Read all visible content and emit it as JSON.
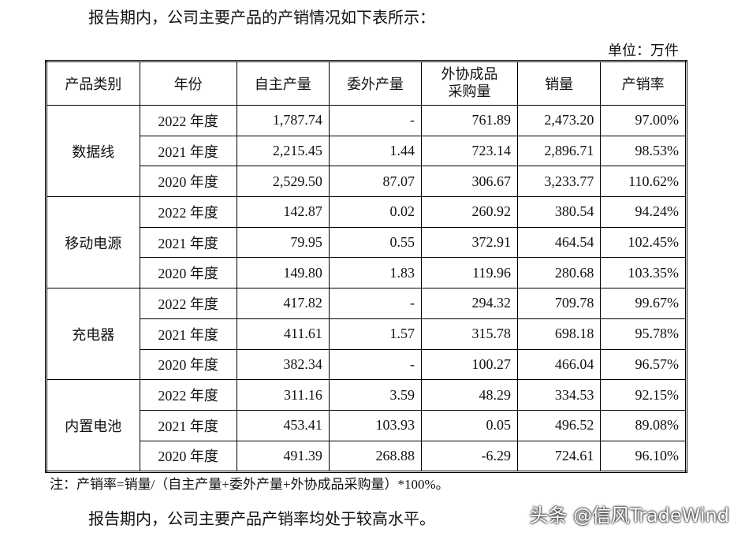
{
  "intro": "报告期内，公司主要产品的产销情况如下表所示：",
  "unit": "单位：万件",
  "table": {
    "header": [
      "产品类别",
      "年份",
      "自主产量",
      "委外产量",
      "外协成品采购量",
      "销量",
      "产销率"
    ],
    "groups": [
      {
        "name": "数据线",
        "rows": [
          [
            "2022 年度",
            "1,787.74",
            "-",
            "761.89",
            "2,473.20",
            "97.00%"
          ],
          [
            "2021 年度",
            "2,215.45",
            "1.44",
            "723.14",
            "2,896.71",
            "98.53%"
          ],
          [
            "2020 年度",
            "2,529.50",
            "87.07",
            "306.67",
            "3,233.77",
            "110.62%"
          ]
        ]
      },
      {
        "name": "移动电源",
        "rows": [
          [
            "2022 年度",
            "142.87",
            "0.02",
            "260.92",
            "380.54",
            "94.24%"
          ],
          [
            "2021 年度",
            "79.95",
            "0.55",
            "372.91",
            "464.54",
            "102.45%"
          ],
          [
            "2020 年度",
            "149.80",
            "1.83",
            "119.96",
            "280.68",
            "103.35%"
          ]
        ]
      },
      {
        "name": "充电器",
        "rows": [
          [
            "2022 年度",
            "417.82",
            "-",
            "294.32",
            "709.78",
            "99.67%"
          ],
          [
            "2021 年度",
            "411.61",
            "1.57",
            "315.78",
            "698.18",
            "95.78%"
          ],
          [
            "2020 年度",
            "382.34",
            "-",
            "100.27",
            "466.04",
            "96.57%"
          ]
        ]
      },
      {
        "name": "内置电池",
        "rows": [
          [
            "2022 年度",
            "311.16",
            "3.59",
            "48.29",
            "334.53",
            "92.15%"
          ],
          [
            "2021 年度",
            "453.41",
            "103.93",
            "0.05",
            "496.52",
            "89.08%"
          ],
          [
            "2020 年度",
            "491.39",
            "268.88",
            "-6.29",
            "724.61",
            "96.10%"
          ]
        ]
      }
    ]
  },
  "note": "注：产销率=销量/（自主产量+委外产量+外协成品采购量）*100%。",
  "outro": "报告期内，公司主要产品产销率均处于较高水平。",
  "watermark": "头条 @信风TradeWind"
}
